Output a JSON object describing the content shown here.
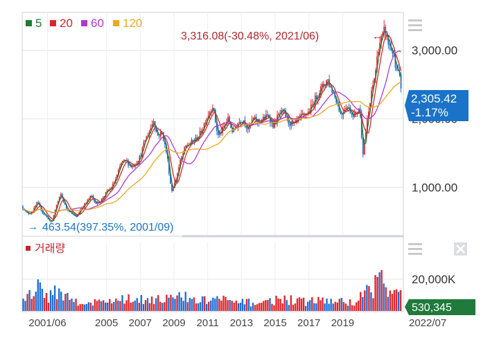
{
  "legend": {
    "ma5": {
      "label": "5",
      "color": "#1e7b34"
    },
    "ma20": {
      "label": "20",
      "color": "#d9252a"
    },
    "ma60": {
      "label": "60",
      "color": "#b038d8"
    },
    "ma120": {
      "label": "120",
      "color": "#f0a81e"
    }
  },
  "annotations": {
    "high": "3,316.08(-30.48%, 2021/06)",
    "high_arrow": "←",
    "low": "463.54(397.35%, 2001/09)",
    "low_arrow": "→"
  },
  "price_badge": {
    "value": "2,305.42",
    "change": "-1.17%",
    "color": "#1a73c8"
  },
  "volume_panel": {
    "label": "거래량",
    "color": "#c8232c"
  },
  "volume_badge": {
    "value": "530,345",
    "color": "#1f7a3c"
  },
  "icons": {
    "menu": "hamburger-menu-icon",
    "close": "close-icon"
  },
  "chart_data": {
    "type": "line",
    "price_axis": {
      "ticks": [
        1000,
        2000,
        3000
      ],
      "labels": [
        "1,000.00",
        "2,000.00",
        "3,000.00"
      ],
      "range": [
        300,
        3550
      ]
    },
    "volume_axis": {
      "ticks": [
        20000
      ],
      "labels": [
        "20,000K"
      ],
      "range": [
        0,
        43000
      ]
    },
    "x_axis": {
      "range": [
        2000.0,
        2022.6
      ],
      "ticks": [
        2001.5,
        2005,
        2007,
        2009,
        2011,
        2013,
        2015,
        2017,
        2019
      ],
      "labels": [
        "2001/06",
        "2005",
        "2007",
        "2009",
        "2011",
        "2013",
        "2015",
        "2017",
        "2019"
      ],
      "last_label": "2022/07"
    },
    "price_path": [
      [
        2000.0,
        720
      ],
      [
        2000.3,
        620
      ],
      [
        2000.6,
        640
      ],
      [
        2000.9,
        780
      ],
      [
        2001.2,
        640
      ],
      [
        2001.5,
        560
      ],
      [
        2001.75,
        475
      ],
      [
        2002.0,
        720
      ],
      [
        2002.3,
        900
      ],
      [
        2002.6,
        700
      ],
      [
        2002.9,
        640
      ],
      [
        2003.2,
        560
      ],
      [
        2003.5,
        700
      ],
      [
        2003.8,
        780
      ],
      [
        2004.1,
        880
      ],
      [
        2004.4,
        760
      ],
      [
        2004.7,
        820
      ],
      [
        2005.0,
        930
      ],
      [
        2005.3,
        1000
      ],
      [
        2005.6,
        1150
      ],
      [
        2005.9,
        1370
      ],
      [
        2006.2,
        1380
      ],
      [
        2006.5,
        1300
      ],
      [
        2006.8,
        1380
      ],
      [
        2007.0,
        1450
      ],
      [
        2007.3,
        1700
      ],
      [
        2007.6,
        1850
      ],
      [
        2007.8,
        2000
      ],
      [
        2008.0,
        1750
      ],
      [
        2008.3,
        1800
      ],
      [
        2008.6,
        1450
      ],
      [
        2008.85,
        940
      ],
      [
        2009.1,
        1100
      ],
      [
        2009.4,
        1400
      ],
      [
        2009.7,
        1600
      ],
      [
        2010.0,
        1650
      ],
      [
        2010.3,
        1700
      ],
      [
        2010.6,
        1800
      ],
      [
        2010.9,
        2000
      ],
      [
        2011.3,
        2200
      ],
      [
        2011.6,
        1750
      ],
      [
        2011.9,
        1850
      ],
      [
        2012.2,
        2000
      ],
      [
        2012.5,
        1800
      ],
      [
        2012.8,
        1950
      ],
      [
        2013.1,
        2000
      ],
      [
        2013.4,
        1850
      ],
      [
        2013.7,
        2000
      ],
      [
        2014.0,
        1950
      ],
      [
        2014.3,
        2000
      ],
      [
        2014.6,
        2050
      ],
      [
        2014.9,
        1900
      ],
      [
        2015.2,
        2050
      ],
      [
        2015.5,
        2100
      ],
      [
        2015.8,
        1950
      ],
      [
        2016.1,
        1900
      ],
      [
        2016.4,
        2000
      ],
      [
        2016.7,
        2050
      ],
      [
        2017.0,
        2100
      ],
      [
        2017.3,
        2250
      ],
      [
        2017.6,
        2400
      ],
      [
        2017.9,
        2500
      ],
      [
        2018.1,
        2580
      ],
      [
        2018.3,
        2450
      ],
      [
        2018.6,
        2300
      ],
      [
        2018.9,
        2050
      ],
      [
        2019.2,
        2200
      ],
      [
        2019.5,
        2100
      ],
      [
        2019.8,
        2050
      ],
      [
        2020.0,
        2200
      ],
      [
        2020.2,
        1500
      ],
      [
        2020.45,
        1950
      ],
      [
        2020.7,
        2350
      ],
      [
        2020.95,
        2700
      ],
      [
        2021.15,
        3100
      ],
      [
        2021.4,
        3200
      ],
      [
        2021.5,
        3316
      ],
      [
        2021.7,
        3100
      ],
      [
        2021.95,
        3000
      ],
      [
        2022.15,
        2700
      ],
      [
        2022.35,
        2650
      ],
      [
        2022.5,
        2305
      ]
    ],
    "volume_profile": [
      [
        2000.0,
        10000
      ],
      [
        2000.5,
        11000
      ],
      [
        2000.9,
        14000
      ],
      [
        2001.05,
        23000
      ],
      [
        2001.3,
        12000
      ],
      [
        2001.7,
        11000
      ],
      [
        2002.2,
        16000
      ],
      [
        2002.6,
        9000
      ],
      [
        2003.0,
        8000
      ],
      [
        2003.5,
        7000
      ],
      [
        2004.5,
        6000
      ],
      [
        2005.5,
        8500
      ],
      [
        2006.5,
        8000
      ],
      [
        2007.5,
        9500
      ],
      [
        2008.5,
        8500
      ],
      [
        2009.5,
        10000
      ],
      [
        2010.5,
        7000
      ],
      [
        2011.5,
        9000
      ],
      [
        2012.5,
        6000
      ],
      [
        2013.5,
        6000
      ],
      [
        2014.5,
        6500
      ],
      [
        2015.5,
        9000
      ],
      [
        2016.5,
        6500
      ],
      [
        2017.5,
        7500
      ],
      [
        2018.5,
        7000
      ],
      [
        2019.5,
        6000
      ],
      [
        2020.0,
        9000
      ],
      [
        2020.4,
        14000
      ],
      [
        2020.8,
        17000
      ],
      [
        2021.1,
        24000
      ],
      [
        2021.35,
        26000
      ],
      [
        2021.6,
        14000
      ],
      [
        2022.0,
        11000
      ],
      [
        2022.3,
        17000
      ],
      [
        2022.5,
        11000
      ]
    ]
  }
}
